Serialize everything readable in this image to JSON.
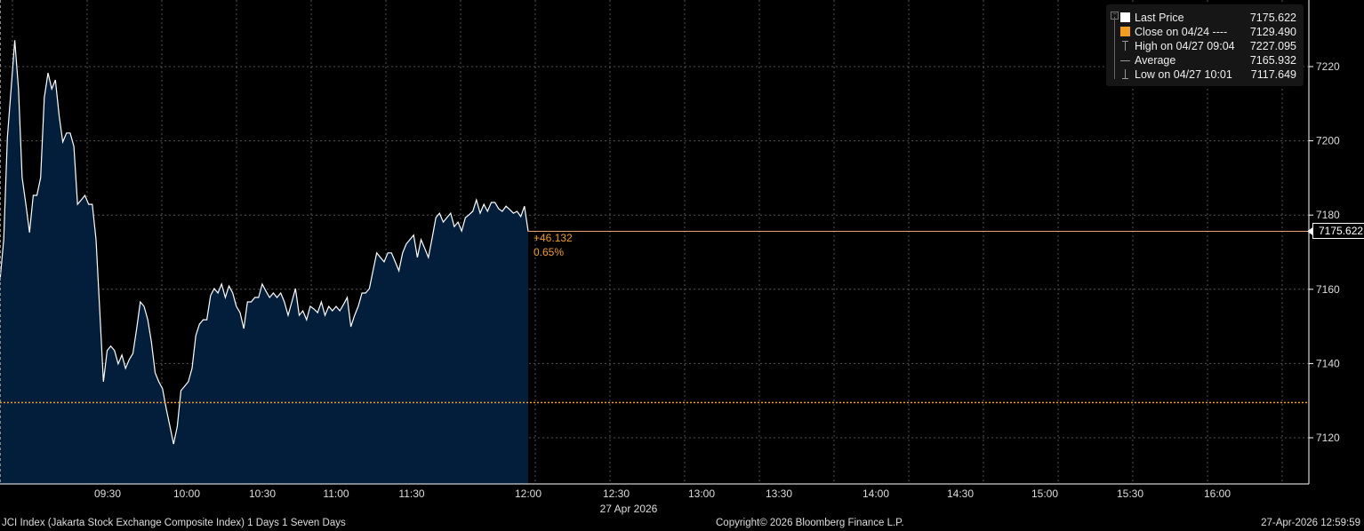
{
  "chart_data": {
    "type": "area",
    "x_start": "09:00",
    "x_end": "12:00",
    "date_label": "27 Apr 2026",
    "x_ticks": [
      "09:30",
      "10:00",
      "10:30",
      "11:00",
      "11:30",
      "12:00",
      "12:30",
      "13:00",
      "13:30",
      "14:00",
      "14:30",
      "15:00",
      "15:30",
      "16:00"
    ],
    "y_ticks": [
      7120,
      7140,
      7160,
      7180,
      7200,
      7220
    ],
    "ylim": [
      7107,
      7240
    ],
    "grid": true,
    "axis_side": "right",
    "legend_placement": "top-right",
    "series": [
      {
        "name": "Last Price",
        "values": [
          7162.4,
          7173.4,
          7200.9,
          7214.0,
          7227.1,
          7214.0,
          7190.1,
          7182.9,
          7175.3,
          7185.3,
          7185.3,
          7190.1,
          7211.6,
          7218.3,
          7214.0,
          7216.4,
          7206.8,
          7199.7,
          7202.1,
          7202.1,
          7198.5,
          7182.9,
          7184.1,
          7185.3,
          7182.9,
          7182.9,
          7173.4,
          7154.2,
          7135.1,
          7143.5,
          7144.7,
          7143.5,
          7139.9,
          7142.3,
          7138.7,
          7141.1,
          7142.7,
          7149.4,
          7156.6,
          7155.4,
          7151.8,
          7145.8,
          7137.5,
          7135.1,
          7133.2,
          7127.9,
          7123.1,
          7118.3,
          7123.1,
          7132.7,
          7133.9,
          7135.1,
          7138.7,
          7147.5,
          7150.6,
          7151.8,
          7151.8,
          7158.3,
          7160.2,
          7159.0,
          7161.4,
          7157.8,
          7160.9,
          7159.0,
          7155.4,
          7153.7,
          7149.4,
          7156.6,
          7156.6,
          7157.8,
          7157.8,
          7161.4,
          7159.5,
          7157.8,
          7159.0,
          7157.8,
          7159.0,
          7156.6,
          7153.0,
          7156.6,
          7160.2,
          7153.0,
          7154.2,
          7151.8,
          7155.4,
          7154.7,
          7153.7,
          7156.6,
          7153.0,
          7155.4,
          7154.2,
          7155.4,
          7154.2,
          7155.9,
          7157.8,
          7149.9,
          7153.0,
          7155.4,
          7159.0,
          7159.0,
          7160.2,
          7165.0,
          7169.8,
          7168.6,
          7167.4,
          7169.8,
          7169.8,
          7167.4,
          7165.0,
          7169.8,
          7172.2,
          7173.4,
          7174.6,
          7168.6,
          7173.4,
          7171.0,
          7168.6,
          7173.8,
          7179.3,
          7180.5,
          7178.1,
          7179.3,
          7180.5,
          7176.9,
          7178.1,
          7175.7,
          7179.3,
          7180.1,
          7181.0,
          7184.1,
          7180.5,
          7182.9,
          7181.0,
          7183.4,
          7183.4,
          7181.7,
          7181.0,
          7182.4,
          7181.5,
          7180.5,
          7181.0,
          7179.6,
          7182.4,
          7175.622
        ]
      }
    ],
    "close_line": 7129.49,
    "last_price_tag": "7175.622",
    "change": "+46.132",
    "change_pct": "0.65%",
    "colors": {
      "line": "#ffffff",
      "fill": "#031e3b",
      "close": "#f39c1e",
      "grid": "#555555",
      "background": "#000000"
    }
  },
  "legend": {
    "items": [
      {
        "icon": "white-square-icon",
        "label": "Last Price",
        "value": "7175.622"
      },
      {
        "icon": "orange-square-icon",
        "label": "Close on 04/24 ----",
        "value": "7129.490"
      },
      {
        "icon": "high-marker-icon",
        "label": "High on 04/27 09:04",
        "value": "7227.095"
      },
      {
        "icon": "average-marker-icon",
        "label": "Average",
        "value": "7165.932"
      },
      {
        "icon": "low-marker-icon",
        "label": "Low on 04/27 10:01",
        "value": "7117.649"
      }
    ]
  },
  "footer": {
    "left": "JCI Index (Jakarta Stock Exchange Composite Index) 1 Days 1 Seven Days",
    "center": "Copyright© 2026 Bloomberg Finance L.P.",
    "right": "27-Apr-2026 12:59:59"
  }
}
